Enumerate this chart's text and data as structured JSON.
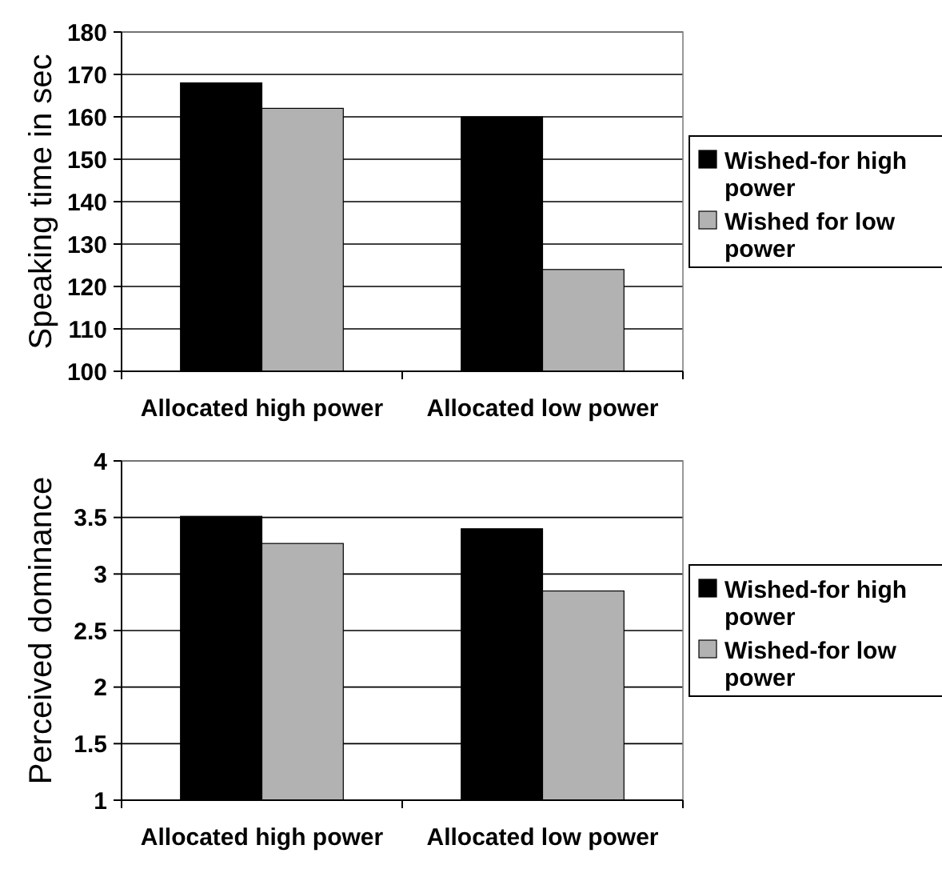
{
  "chart_data": [
    {
      "type": "bar",
      "ylabel": "Speaking time in sec",
      "categories": [
        "Allocated high power",
        "Allocated low power"
      ],
      "series": [
        {
          "name": "Wished-for high power",
          "color": "#000000",
          "values": [
            168,
            160
          ]
        },
        {
          "name": "Wished for low power",
          "color": "#b2b2b2",
          "values": [
            162,
            124
          ]
        }
      ],
      "ylim": [
        100,
        180
      ],
      "yticks": [
        100,
        110,
        120,
        130,
        140,
        150,
        160,
        170,
        180
      ],
      "grid": "y",
      "legend": "right"
    },
    {
      "type": "bar",
      "ylabel": "Perceived dominance",
      "categories": [
        "Allocated high power",
        "Allocated low power"
      ],
      "series": [
        {
          "name": "Wished-for high power",
          "color": "#000000",
          "values": [
            3.51,
            3.4
          ]
        },
        {
          "name": "Wished-for low power",
          "color": "#b2b2b2",
          "values": [
            3.27,
            2.85
          ]
        }
      ],
      "ylim": [
        1,
        4
      ],
      "yticks": [
        1,
        1.5,
        2,
        2.5,
        3,
        3.5,
        4
      ],
      "grid": "y",
      "legend": "right"
    }
  ]
}
